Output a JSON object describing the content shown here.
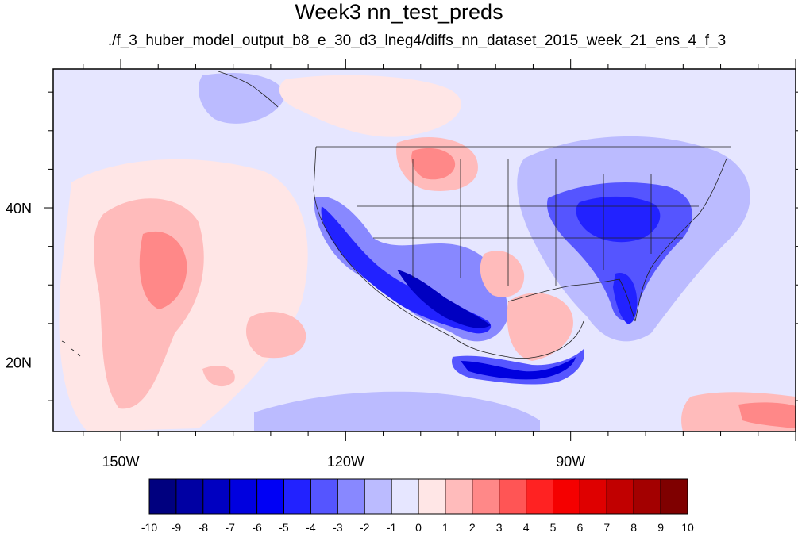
{
  "chart_data": {
    "type": "heatmap",
    "title": "Week3 nn_test_preds",
    "subtitle": "./f_3_huber_model_output_b8_e_30_d3_lneg4/diffs_nn_dataset_2015_week_21_ens_4_f_3",
    "x_tick_labels": [
      {
        "lon": -150,
        "label": "150W"
      },
      {
        "lon": -120,
        "label": "120W"
      },
      {
        "lon": -90,
        "label": "90W"
      }
    ],
    "y_tick_labels": [
      {
        "lat": 40,
        "label": "40N"
      },
      {
        "lat": 20,
        "label": "20N"
      }
    ],
    "lon_range": [
      -159,
      -60
    ],
    "lat_range": [
      11,
      58
    ],
    "colorbar": {
      "labels": [
        "-10",
        "-9",
        "-8",
        "-7",
        "-6",
        "-5",
        "-4",
        "-3",
        "-2",
        "-1",
        "0",
        "1",
        "2",
        "3",
        "4",
        "5",
        "6",
        "7",
        "8",
        "9",
        "10"
      ],
      "colors": [
        "#00007f",
        "#0000a3",
        "#0000c1",
        "#0000df",
        "#0000f5",
        "#2222ff",
        "#5555ff",
        "#8888ff",
        "#bbbbff",
        "#e6e6ff",
        "#ffe6e6",
        "#ffbbbb",
        "#ff8888",
        "#ff5555",
        "#ff2222",
        "#f50000",
        "#df0000",
        "#c10000",
        "#a30000",
        "#7f0000"
      ]
    },
    "background_color": "#e6e6ff"
  }
}
